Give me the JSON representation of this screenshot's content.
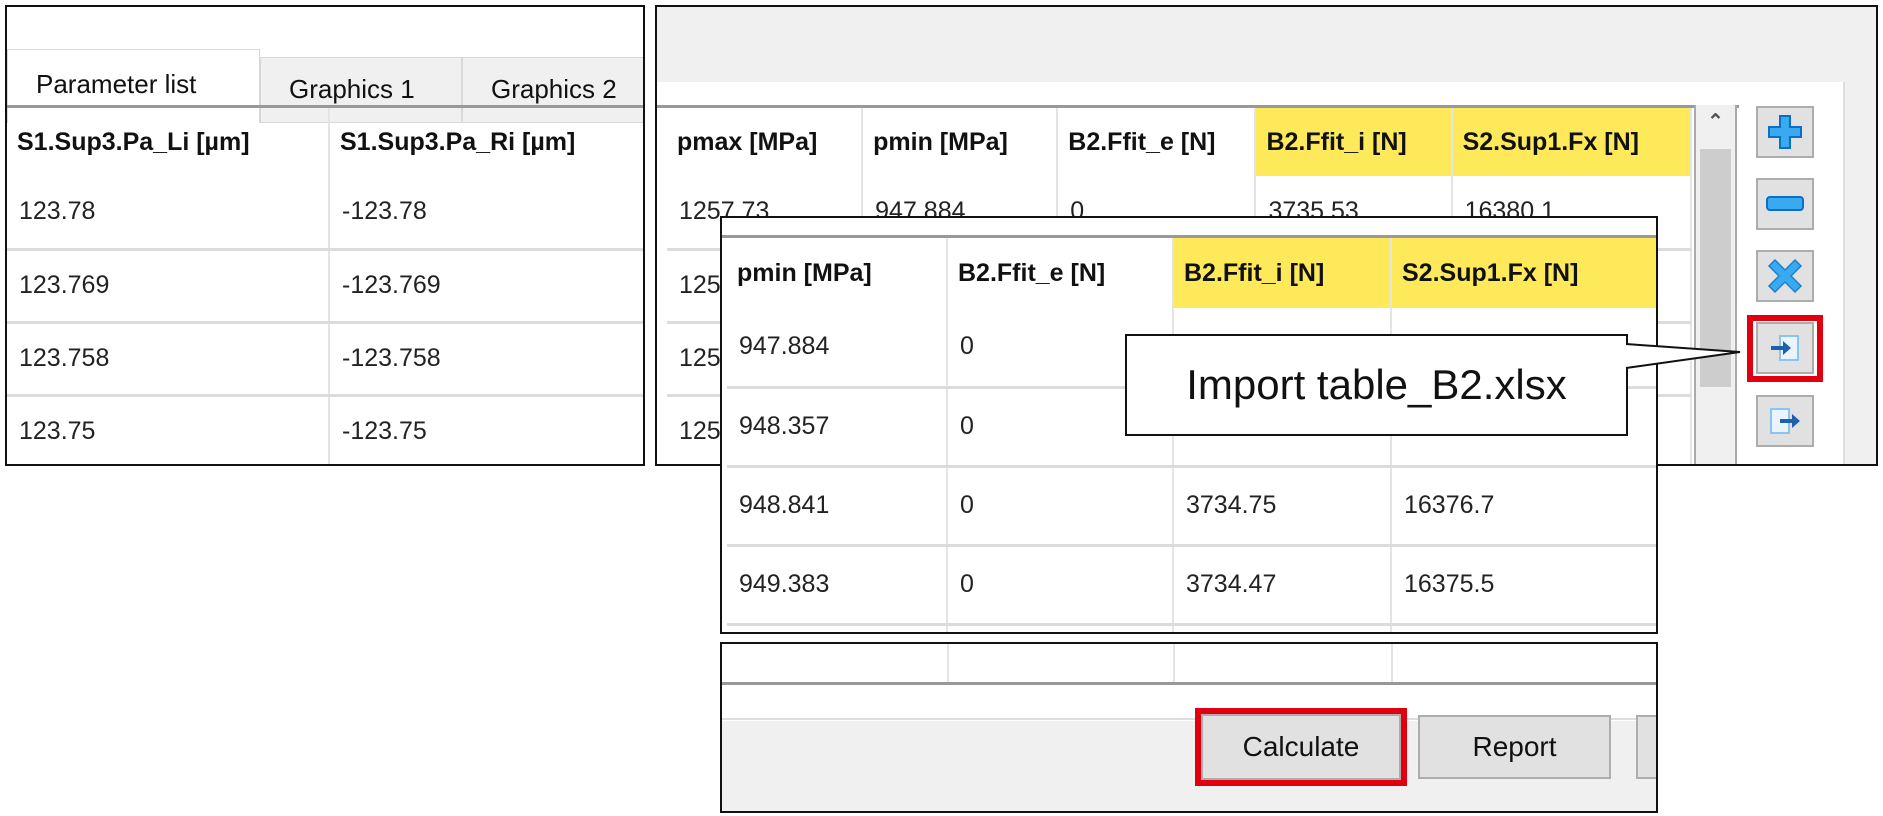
{
  "colors": {
    "highlight": "#fde95a",
    "accent_red": "#e0000f",
    "icon_blue": "#1e8fe0"
  },
  "left": {
    "tabs": [
      {
        "label": "Parameter list",
        "selected": true
      },
      {
        "label": "Graphics 1"
      },
      {
        "label": "Graphics 2"
      }
    ],
    "columns": [
      "S1.Sup3.Pa_Li [µm]",
      "S1.Sup3.Pa_Ri [µm]"
    ],
    "rows": [
      [
        "123.78",
        "-123.78"
      ],
      [
        "123.769",
        "-123.769"
      ],
      [
        "123.758",
        "-123.758"
      ],
      [
        "123.75",
        "-123.75"
      ],
      [
        "",
        ""
      ]
    ]
  },
  "right": {
    "columns": [
      "pmax [MPa]",
      "pmin [MPa]",
      "B2.Ffit_e [N]",
      "B2.Ffit_i [N]",
      "S2.Sup1.Fx [N]"
    ],
    "highlighted": [
      false,
      false,
      false,
      true,
      true
    ],
    "rows": [
      [
        "1257.73",
        "947.884",
        "0",
        "3735.53",
        "16380.1"
      ],
      [
        "125",
        "",
        "",
        "",
        ""
      ],
      [
        "125",
        "",
        "",
        "",
        ""
      ],
      [
        "125",
        "",
        "",
        "",
        ""
      ],
      [
        "",
        "",
        "",
        "",
        ""
      ]
    ],
    "toolbar": [
      {
        "icon": "plus-icon",
        "tooltip": "Add"
      },
      {
        "icon": "minus-icon",
        "tooltip": "Remove"
      },
      {
        "icon": "delete-icon",
        "tooltip": "Delete"
      },
      {
        "icon": "import-icon",
        "tooltip": "Import table",
        "highlighted": true
      },
      {
        "icon": "export-icon",
        "tooltip": "Export table"
      }
    ]
  },
  "zoom": {
    "columns": [
      "pmin [MPa]",
      "B2.Ffit_e [N]",
      "B2.Ffit_i [N]",
      "S2.Sup1.Fx [N]"
    ],
    "highlighted": [
      false,
      false,
      true,
      true
    ],
    "rows": [
      [
        "947.884",
        "0",
        "",
        ""
      ],
      [
        "948.357",
        "0",
        "",
        ""
      ],
      [
        "948.841",
        "0",
        "3734.75",
        "16376.7"
      ],
      [
        "949.383",
        "0",
        "3734.47",
        "16375.5"
      ],
      [
        "",
        "",
        "",
        ""
      ]
    ]
  },
  "callout": {
    "text": "Import table_B2.xlsx"
  },
  "footer": {
    "calculate_label": "Calculate",
    "report_label": "Report"
  }
}
